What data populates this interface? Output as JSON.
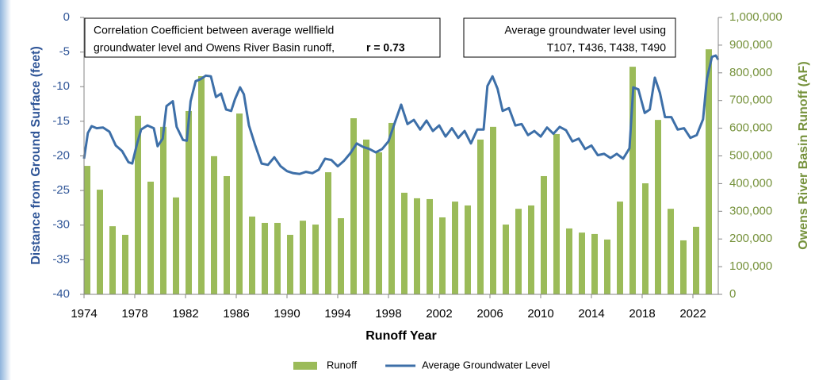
{
  "chart_data": {
    "type": "bar",
    "x_label": "Runoff Year",
    "y_label": "Distance from Ground Surface (feet)",
    "y2_label": "Owens River Basin Runoff (AF)",
    "xlim": [
      1974,
      2024
    ],
    "xticks": [
      1974,
      1978,
      1982,
      1986,
      1990,
      1994,
      1998,
      2002,
      2006,
      2010,
      2014,
      2018,
      2022
    ],
    "ylim": [
      -40,
      0
    ],
    "yticks": [
      0,
      -5,
      -10,
      -15,
      -20,
      -25,
      -30,
      -35,
      -40
    ],
    "y2lim": [
      0,
      1000000
    ],
    "y2ticks": [
      0,
      {
        "value": 100000,
        "label": "100,000"
      },
      {
        "value": 200000,
        "label": "200,000"
      },
      {
        "value": 300000,
        "label": "300,000"
      },
      {
        "value": 400000,
        "label": "400,000"
      },
      {
        "value": 500000,
        "label": "500,000"
      },
      {
        "value": 600000,
        "label": "600,000"
      },
      {
        "value": 700000,
        "label": "700,000"
      },
      {
        "value": 800000,
        "label": "800,000"
      },
      {
        "value": 900000,
        "label": "900,000"
      },
      {
        "value": 1000000,
        "label": "1,000,000"
      }
    ],
    "grid": false,
    "legend": "bottom",
    "annotations": [
      {
        "text": [
          "Correlation Coefficient  between average wellfield",
          "groundwater level and Owens River Basin runoff,"
        ],
        "emphasis": "r = 0.73"
      },
      {
        "text": [
          "Average groundwater level using",
          "T107, T436, T438, T490"
        ]
      }
    ],
    "series": [
      {
        "name": "Runoff",
        "type": "bar",
        "axis": "y2",
        "color": "#9bbb59",
        "x": [
          1974,
          1975,
          1976,
          1977,
          1978,
          1979,
          1980,
          1981,
          1982,
          1983,
          1984,
          1985,
          1986,
          1987,
          1988,
          1989,
          1990,
          1991,
          1992,
          1993,
          1994,
          1995,
          1996,
          1997,
          1998,
          1999,
          2000,
          2001,
          2002,
          2003,
          2004,
          2005,
          2006,
          2007,
          2008,
          2009,
          2010,
          2011,
          2012,
          2013,
          2014,
          2015,
          2016,
          2017,
          2018,
          2019,
          2020,
          2021,
          2022,
          2023
        ],
        "values": [
          464000,
          378000,
          246000,
          215000,
          645000,
          407000,
          605000,
          350000,
          662000,
          788000,
          499000,
          427000,
          653000,
          281000,
          258000,
          258000,
          215000,
          266000,
          252000,
          441000,
          275000,
          636000,
          559000,
          513000,
          619000,
          367000,
          347000,
          344000,
          278000,
          335000,
          321000,
          559000,
          605000,
          252000,
          309000,
          321000,
          427000,
          579000,
          238000,
          223000,
          218000,
          198000,
          335000,
          822000,
          401000,
          630000,
          309000,
          195000,
          244000,
          885000
        ]
      },
      {
        "name": "Average Groundwater Level",
        "type": "line",
        "axis": "y",
        "color": "#3d6fa8",
        "x": [
          1974.0,
          1974.3,
          1974.6,
          1975.0,
          1975.5,
          1976.0,
          1976.5,
          1977.0,
          1977.5,
          1977.8,
          1978.2,
          1978.5,
          1979.0,
          1979.5,
          1979.8,
          1980.2,
          1980.5,
          1981.0,
          1981.3,
          1981.8,
          1982.1,
          1982.4,
          1982.8,
          1983.2,
          1983.6,
          1984.0,
          1984.4,
          1984.8,
          1985.2,
          1985.6,
          1985.9,
          1986.3,
          1986.6,
          1987.0,
          1987.5,
          1988.0,
          1988.5,
          1989.0,
          1989.5,
          1990.0,
          1990.5,
          1991.0,
          1991.5,
          1992.0,
          1992.5,
          1993.0,
          1993.5,
          1994.0,
          1994.5,
          1995.0,
          1995.5,
          1996.0,
          1996.5,
          1997.0,
          1997.5,
          1998.0,
          1998.5,
          1999.0,
          1999.5,
          2000.0,
          2000.5,
          2001.0,
          2001.5,
          2002.0,
          2002.5,
          2003.0,
          2003.5,
          2004.0,
          2004.5,
          2005.0,
          2005.5,
          2005.8,
          2006.2,
          2006.6,
          2007.0,
          2007.5,
          2008.0,
          2008.5,
          2009.0,
          2009.5,
          2010.0,
          2010.5,
          2011.0,
          2011.5,
          2012.0,
          2012.5,
          2013.0,
          2013.5,
          2014.0,
          2014.5,
          2015.0,
          2015.5,
          2016.0,
          2016.5,
          2017.0,
          2017.3,
          2017.7,
          2018.2,
          2018.6,
          2019.0,
          2019.4,
          2019.8,
          2020.3,
          2020.8,
          2021.3,
          2021.8,
          2022.3,
          2022.8,
          2023.1,
          2023.5,
          2023.8,
          2024.0
        ],
        "values": [
          -20.4,
          -16.7,
          -15.7,
          -16.0,
          -15.9,
          -16.5,
          -18.5,
          -19.3,
          -20.9,
          -21.1,
          -18.1,
          -16.2,
          -15.6,
          -16.0,
          -18.6,
          -17.5,
          -12.8,
          -12.1,
          -15.8,
          -17.7,
          -17.8,
          -12.1,
          -9.2,
          -8.9,
          -8.4,
          -8.5,
          -11.5,
          -11.0,
          -13.3,
          -13.5,
          -11.8,
          -10.1,
          -11.1,
          -15.6,
          -18.5,
          -21.1,
          -21.3,
          -20.2,
          -21.5,
          -22.2,
          -22.5,
          -22.6,
          -22.3,
          -22.5,
          -22.0,
          -20.4,
          -20.6,
          -21.5,
          -20.7,
          -19.6,
          -18.2,
          -18.7,
          -19.0,
          -19.5,
          -19.0,
          -17.9,
          -15.2,
          -12.6,
          -15.4,
          -14.8,
          -16.2,
          -14.9,
          -16.4,
          -15.6,
          -17.2,
          -16.0,
          -17.4,
          -16.4,
          -18.2,
          -16.2,
          -16.2,
          -9.9,
          -8.5,
          -10.3,
          -13.5,
          -13.1,
          -15.6,
          -15.4,
          -17.0,
          -16.4,
          -17.2,
          -15.9,
          -16.8,
          -15.8,
          -16.3,
          -17.9,
          -17.5,
          -19.0,
          -18.5,
          -19.9,
          -19.7,
          -20.3,
          -19.7,
          -20.4,
          -18.9,
          -10.1,
          -10.4,
          -13.8,
          -13.3,
          -8.7,
          -10.9,
          -14.4,
          -14.4,
          -16.2,
          -16.0,
          -17.4,
          -17.0,
          -14.7,
          -8.9,
          -5.7,
          -5.5,
          -6.1
        ]
      }
    ]
  }
}
